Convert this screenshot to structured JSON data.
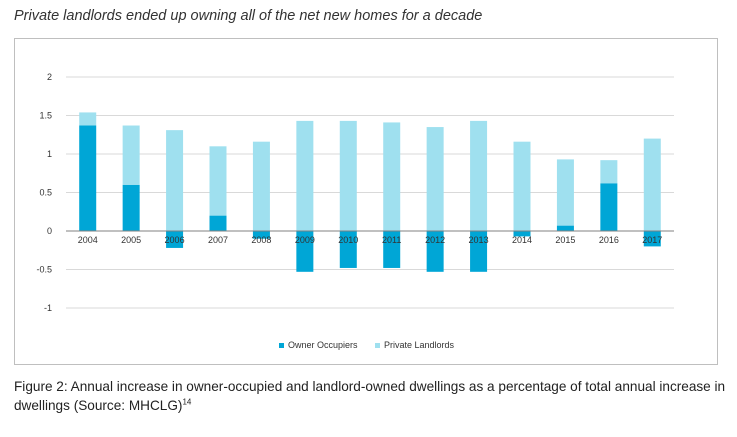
{
  "title": "Private landlords ended up owning all of the net new homes for a decade",
  "caption": {
    "text": "Figure 2: Annual increase in owner-occupied and landlord-owned dwellings as a percentage of total annual increase in dwellings (Source: MHCLG)",
    "footnote": "14"
  },
  "colors": {
    "owner": "#00a6d6",
    "landlord": "#9fe0ef",
    "grid": "#d9d9d9",
    "axis": "#808080"
  },
  "chart_data": {
    "type": "bar",
    "stacked": true,
    "categories": [
      "2004",
      "2005",
      "2006",
      "2007",
      "2008",
      "2009",
      "2010",
      "2011",
      "2012",
      "2013",
      "2014",
      "2015",
      "2016",
      "2017"
    ],
    "series": [
      {
        "name": "Owner Occupiers",
        "values": [
          1.37,
          0.6,
          -0.22,
          0.2,
          -0.1,
          -0.53,
          -0.48,
          -0.48,
          -0.53,
          -0.53,
          -0.07,
          0.07,
          0.62,
          -0.2
        ]
      },
      {
        "name": "Private Landlords",
        "values": [
          0.17,
          0.77,
          1.31,
          0.9,
          1.16,
          1.43,
          1.43,
          1.41,
          1.35,
          1.43,
          1.16,
          0.86,
          0.3,
          1.2
        ]
      }
    ],
    "ylim": [
      -1,
      2
    ],
    "yticks": [
      "-1",
      "-0.5",
      "0",
      "0.5",
      "1",
      "1.5",
      "2"
    ],
    "ytick_values": [
      -1,
      -0.5,
      0,
      0.5,
      1,
      1.5,
      2
    ],
    "xlabel": "",
    "ylabel": "",
    "grid": true,
    "legend_position": "bottom-center"
  }
}
